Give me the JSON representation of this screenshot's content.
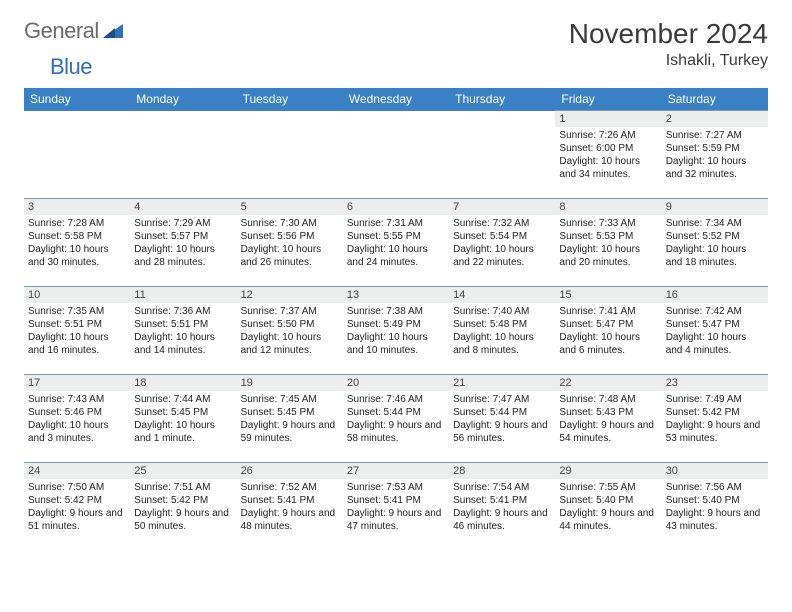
{
  "logo": {
    "text1": "General",
    "text2": "Blue"
  },
  "title": "November 2024",
  "location": "Ishakli, Turkey",
  "day_names": [
    "Sunday",
    "Monday",
    "Tuesday",
    "Wednesday",
    "Thursday",
    "Friday",
    "Saturday"
  ],
  "header_bg": "#3a80c4",
  "header_fg": "#ffffff",
  "daynum_bg": "#eceded",
  "row_border": "#7a98b5",
  "weeks": [
    [
      null,
      null,
      null,
      null,
      null,
      {
        "n": "1",
        "sunrise": "7:26 AM",
        "sunset": "6:00 PM",
        "daylight": "10 hours and 34 minutes."
      },
      {
        "n": "2",
        "sunrise": "7:27 AM",
        "sunset": "5:59 PM",
        "daylight": "10 hours and 32 minutes."
      }
    ],
    [
      {
        "n": "3",
        "sunrise": "7:28 AM",
        "sunset": "5:58 PM",
        "daylight": "10 hours and 30 minutes."
      },
      {
        "n": "4",
        "sunrise": "7:29 AM",
        "sunset": "5:57 PM",
        "daylight": "10 hours and 28 minutes."
      },
      {
        "n": "5",
        "sunrise": "7:30 AM",
        "sunset": "5:56 PM",
        "daylight": "10 hours and 26 minutes."
      },
      {
        "n": "6",
        "sunrise": "7:31 AM",
        "sunset": "5:55 PM",
        "daylight": "10 hours and 24 minutes."
      },
      {
        "n": "7",
        "sunrise": "7:32 AM",
        "sunset": "5:54 PM",
        "daylight": "10 hours and 22 minutes."
      },
      {
        "n": "8",
        "sunrise": "7:33 AM",
        "sunset": "5:53 PM",
        "daylight": "10 hours and 20 minutes."
      },
      {
        "n": "9",
        "sunrise": "7:34 AM",
        "sunset": "5:52 PM",
        "daylight": "10 hours and 18 minutes."
      }
    ],
    [
      {
        "n": "10",
        "sunrise": "7:35 AM",
        "sunset": "5:51 PM",
        "daylight": "10 hours and 16 minutes."
      },
      {
        "n": "11",
        "sunrise": "7:36 AM",
        "sunset": "5:51 PM",
        "daylight": "10 hours and 14 minutes."
      },
      {
        "n": "12",
        "sunrise": "7:37 AM",
        "sunset": "5:50 PM",
        "daylight": "10 hours and 12 minutes."
      },
      {
        "n": "13",
        "sunrise": "7:38 AM",
        "sunset": "5:49 PM",
        "daylight": "10 hours and 10 minutes."
      },
      {
        "n": "14",
        "sunrise": "7:40 AM",
        "sunset": "5:48 PM",
        "daylight": "10 hours and 8 minutes."
      },
      {
        "n": "15",
        "sunrise": "7:41 AM",
        "sunset": "5:47 PM",
        "daylight": "10 hours and 6 minutes."
      },
      {
        "n": "16",
        "sunrise": "7:42 AM",
        "sunset": "5:47 PM",
        "daylight": "10 hours and 4 minutes."
      }
    ],
    [
      {
        "n": "17",
        "sunrise": "7:43 AM",
        "sunset": "5:46 PM",
        "daylight": "10 hours and 3 minutes."
      },
      {
        "n": "18",
        "sunrise": "7:44 AM",
        "sunset": "5:45 PM",
        "daylight": "10 hours and 1 minute."
      },
      {
        "n": "19",
        "sunrise": "7:45 AM",
        "sunset": "5:45 PM",
        "daylight": "9 hours and 59 minutes."
      },
      {
        "n": "20",
        "sunrise": "7:46 AM",
        "sunset": "5:44 PM",
        "daylight": "9 hours and 58 minutes."
      },
      {
        "n": "21",
        "sunrise": "7:47 AM",
        "sunset": "5:44 PM",
        "daylight": "9 hours and 56 minutes."
      },
      {
        "n": "22",
        "sunrise": "7:48 AM",
        "sunset": "5:43 PM",
        "daylight": "9 hours and 54 minutes."
      },
      {
        "n": "23",
        "sunrise": "7:49 AM",
        "sunset": "5:42 PM",
        "daylight": "9 hours and 53 minutes."
      }
    ],
    [
      {
        "n": "24",
        "sunrise": "7:50 AM",
        "sunset": "5:42 PM",
        "daylight": "9 hours and 51 minutes."
      },
      {
        "n": "25",
        "sunrise": "7:51 AM",
        "sunset": "5:42 PM",
        "daylight": "9 hours and 50 minutes."
      },
      {
        "n": "26",
        "sunrise": "7:52 AM",
        "sunset": "5:41 PM",
        "daylight": "9 hours and 48 minutes."
      },
      {
        "n": "27",
        "sunrise": "7:53 AM",
        "sunset": "5:41 PM",
        "daylight": "9 hours and 47 minutes."
      },
      {
        "n": "28",
        "sunrise": "7:54 AM",
        "sunset": "5:41 PM",
        "daylight": "9 hours and 46 minutes."
      },
      {
        "n": "29",
        "sunrise": "7:55 AM",
        "sunset": "5:40 PM",
        "daylight": "9 hours and 44 minutes."
      },
      {
        "n": "30",
        "sunrise": "7:56 AM",
        "sunset": "5:40 PM",
        "daylight": "9 hours and 43 minutes."
      }
    ]
  ],
  "labels": {
    "sunrise": "Sunrise:",
    "sunset": "Sunset:",
    "daylight": "Daylight:"
  }
}
